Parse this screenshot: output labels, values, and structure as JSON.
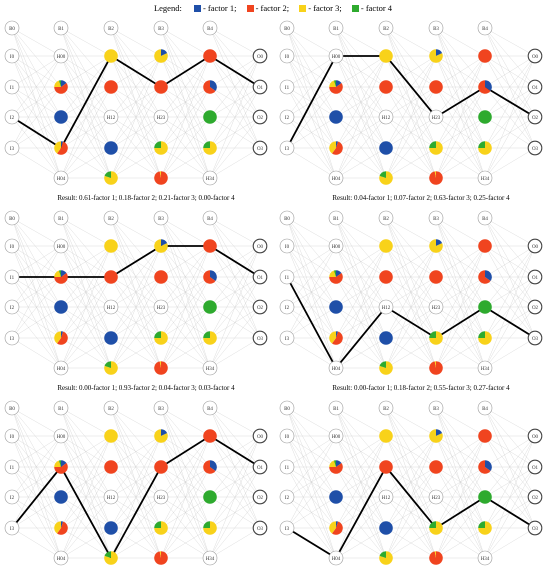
{
  "legend": {
    "title": "Legend:",
    "items": [
      {
        "label": "- factor 1;",
        "color": "#1f4fa8"
      },
      {
        "label": "- factor 2;",
        "color": "#f0441f"
      },
      {
        "label": "- factor 3;",
        "color": "#f8d21a"
      },
      {
        "label": "- factor 4",
        "color": "#2eaa2e"
      }
    ]
  },
  "node_labels": {
    "input": [
      "B0",
      "I0",
      "I1",
      "I2",
      "I3"
    ],
    "h1": [
      "B1",
      "H00",
      "",
      "",
      "",
      "H04"
    ],
    "h2": [
      "B2",
      "",
      "",
      "H12",
      "",
      ""
    ],
    "h3": [
      "B3",
      "",
      "",
      "H23",
      "",
      ""
    ],
    "h4": [
      "B4",
      "",
      "",
      "",
      "",
      "H34"
    ],
    "output": [
      "O0",
      "O1",
      "O2",
      "O3"
    ]
  },
  "network": {
    "h1": [
      null,
      null,
      [
        0.15,
        0.6,
        0.2,
        0.05
      ],
      [
        1,
        0,
        0,
        0
      ],
      [
        0.05,
        0.55,
        0.4,
        0
      ],
      null
    ],
    "h2": [
      null,
      [
        0,
        0,
        1,
        0
      ],
      [
        0,
        1,
        0,
        0
      ],
      null,
      [
        1,
        0,
        0,
        0
      ],
      [
        0,
        0,
        0.8,
        0.2
      ]
    ],
    "h3": [
      null,
      [
        0.18,
        0,
        0.82,
        0
      ],
      [
        0,
        1,
        0,
        0
      ],
      null,
      [
        0,
        0,
        0.75,
        0.25
      ],
      [
        0,
        0.97,
        0.03,
        0
      ]
    ],
    "h4": [
      null,
      [
        0,
        1,
        0,
        0
      ],
      [
        0.35,
        0.65,
        0,
        0
      ],
      [
        0,
        0,
        0,
        1
      ],
      [
        0,
        0,
        0.75,
        0.25
      ],
      null
    ]
  },
  "panels": [
    {
      "caption": "Result: 0.61-factor 1; 0.18-factor 2; 0.21-factor 3; 0.00-factor 4",
      "path": [
        3,
        4,
        1,
        2,
        1
      ]
    },
    {
      "caption": "Result: 0.04-factor 1; 0.07-factor 2; 0.63-factor 3; 0.25-factor 4",
      "path": [
        4,
        1,
        1,
        3,
        2
      ]
    },
    {
      "caption": "Result: 0.00-factor 1; 0.93-factor 2; 0.04-factor 3; 0.03-factor 4",
      "path": [
        2,
        2,
        2,
        1,
        1
      ]
    },
    {
      "caption": "Result: 0.00-factor 1; 0.18-factor 2; 0.55-factor 3; 0.27-factor 4",
      "path": [
        2,
        5,
        3,
        4,
        3
      ]
    },
    {
      "caption": "Result: 0.08-factor 1; 0.75-factor 2; 0.17-factor 3; 0.00-factor 4",
      "path": [
        4,
        2,
        5,
        2,
        1
      ]
    },
    {
      "caption": "Result: 0.00-factor 1; 0.07-factor 2; 0.69-factor 3; 0.24-factor 4",
      "path": [
        4,
        5,
        2,
        4,
        3
      ]
    }
  ]
}
